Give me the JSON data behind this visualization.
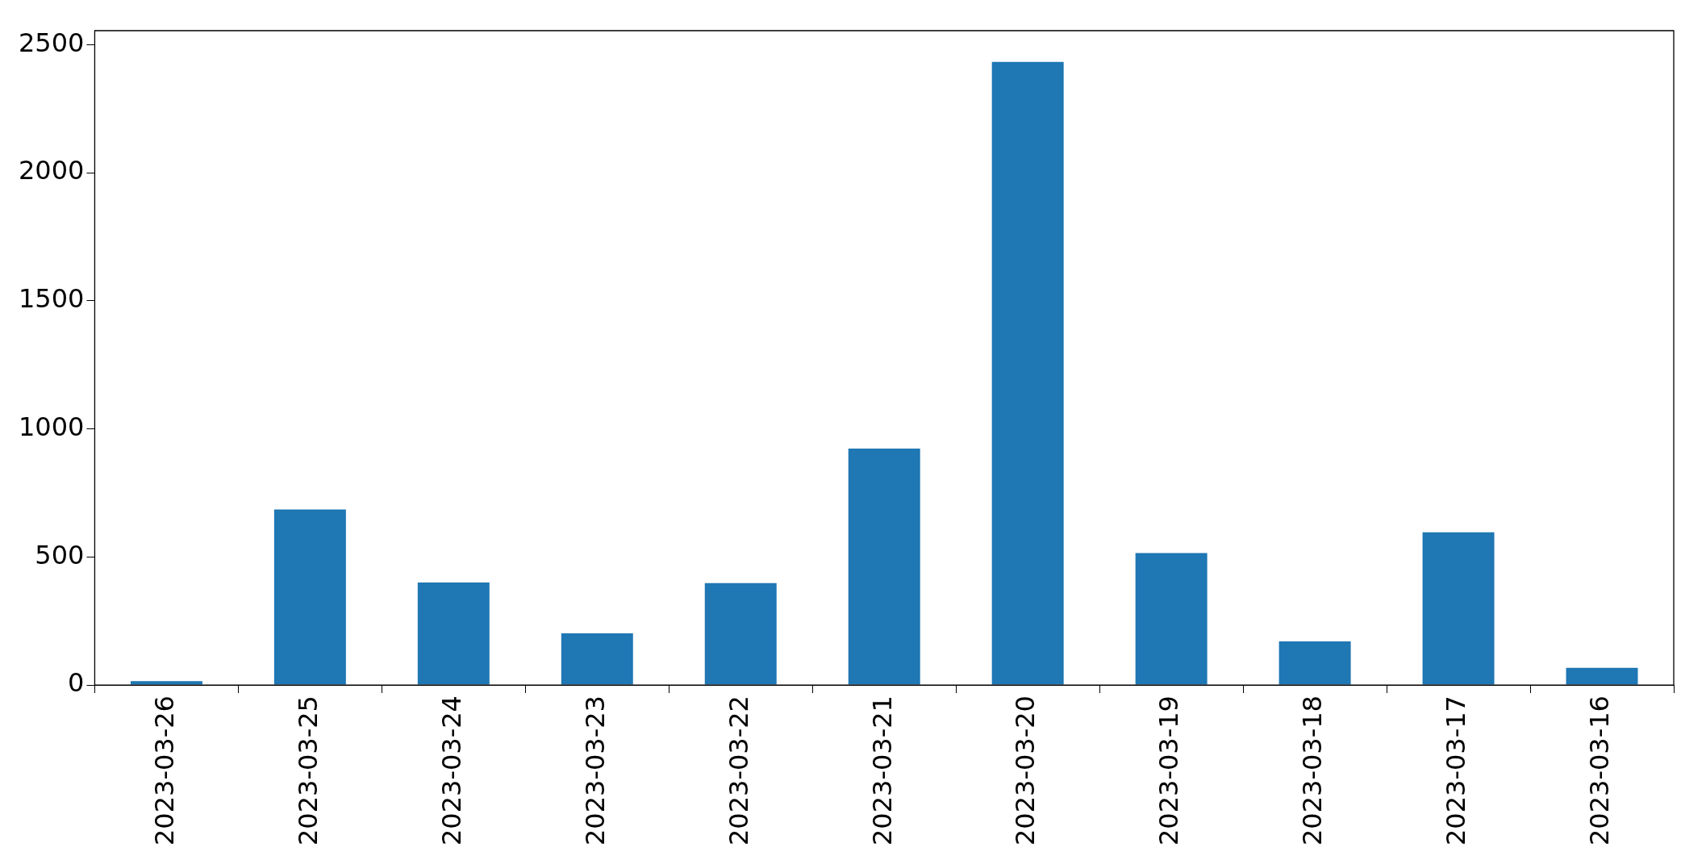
{
  "chart_data": {
    "type": "bar",
    "categories": [
      "2023-03-26",
      "2023-03-25",
      "2023-03-24",
      "2023-03-23",
      "2023-03-22",
      "2023-03-21",
      "2023-03-20",
      "2023-03-19",
      "2023-03-18",
      "2023-03-17",
      "2023-03-16"
    ],
    "values": [
      15,
      685,
      400,
      202,
      398,
      923,
      2433,
      515,
      170,
      596,
      67
    ],
    "color": "#1f77b4",
    "ylim": [
      0,
      2555
    ],
    "yticks": [
      0,
      500,
      1000,
      1500,
      2000,
      2500
    ],
    "grid": false,
    "legend": false
  }
}
